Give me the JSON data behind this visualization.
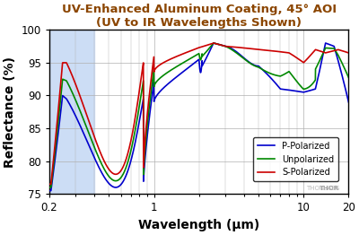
{
  "title_line1": "UV-Enhanced Aluminum Coating, 45° AOI",
  "title_line2": "(UV to IR Wavelengths Shown)",
  "xlabel": "Wavelength (μm)",
  "ylabel": "Reflectance (%)",
  "xlim": [
    0.2,
    20
  ],
  "ylim": [
    75,
    100
  ],
  "yticks": [
    75,
    80,
    85,
    90,
    95,
    100
  ],
  "shaded_region": [
    0.2,
    0.4
  ],
  "shaded_color": "#ccddf5",
  "line_colors": {
    "p": "#0000cc",
    "unpol": "#008800",
    "s": "#cc0000"
  },
  "title_color": "#8B4500",
  "title_fontsize": 9.5,
  "axis_label_fontsize": 10,
  "tick_fontsize": 8.5,
  "legend_entries": [
    "P-Polarized",
    "Unpolarized",
    "S-Polarized"
  ],
  "watermark": "THORLABS",
  "background_color": "#ffffff",
  "grid_color": "#b0b0b0"
}
